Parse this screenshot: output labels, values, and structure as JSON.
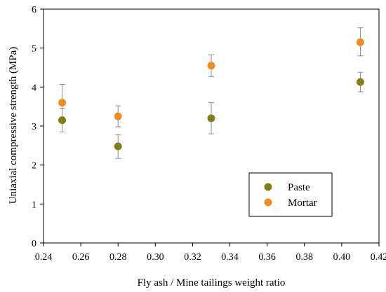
{
  "chart_data": {
    "type": "scatter",
    "title": "",
    "xlabel": "Fly ash / Mine tailings weight ratio",
    "ylabel": "Uniaxial compressive strength (MPa)",
    "xlim": [
      0.24,
      0.42
    ],
    "ylim": [
      0,
      6
    ],
    "xticks": [
      0.24,
      0.26,
      0.28,
      0.3,
      0.32,
      0.34,
      0.36,
      0.38,
      0.4,
      0.42
    ],
    "xtick_labels": [
      "0.24",
      "0.26",
      "0.28",
      "0.30",
      "0.32",
      "0.34",
      "0.36",
      "0.38",
      "0.40",
      "0.42"
    ],
    "yticks": [
      0,
      1,
      2,
      3,
      4,
      5,
      6
    ],
    "ytick_labels": [
      "0",
      "1",
      "2",
      "3",
      "4",
      "5",
      "6"
    ],
    "grid": false,
    "legend_position": "bottom-right",
    "series": [
      {
        "name": "Paste",
        "color": "#7f7f1a",
        "x": [
          0.25,
          0.28,
          0.33,
          0.41
        ],
        "y": [
          3.15,
          2.48,
          3.2,
          4.13
        ],
        "err_low": [
          2.85,
          2.17,
          2.8,
          3.88
        ],
        "err_high": [
          3.45,
          2.78,
          3.6,
          4.38
        ]
      },
      {
        "name": "Mortar",
        "color": "#f28c1e",
        "x": [
          0.25,
          0.28,
          0.33,
          0.41
        ],
        "y": [
          3.6,
          3.25,
          4.55,
          5.15
        ],
        "err_low": [
          3.45,
          2.98,
          4.27,
          4.8
        ],
        "err_high": [
          4.07,
          3.52,
          4.83,
          5.52
        ]
      }
    ]
  }
}
